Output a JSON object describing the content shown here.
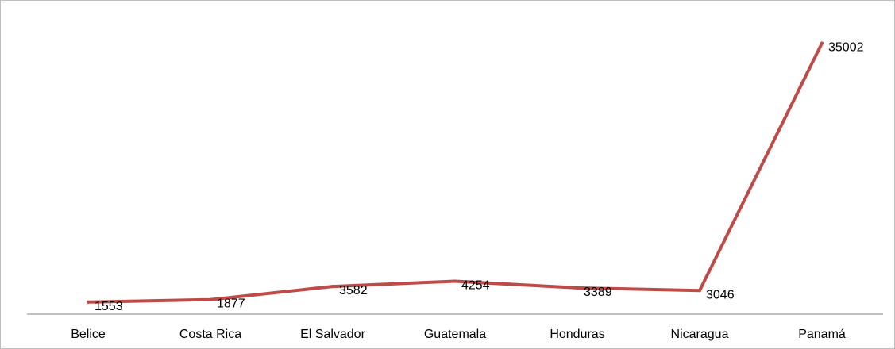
{
  "chart_data": {
    "type": "line",
    "categories": [
      "Belice",
      "Costa Rica",
      "El Salvador",
      "Guatemala",
      "Honduras",
      "Nicaragua",
      "Panamá"
    ],
    "series": [
      {
        "values": [
          1553,
          1877,
          3582,
          4254,
          3389,
          3046,
          35002
        ],
        "color": "#be4b48"
      }
    ],
    "data_labels": [
      "1553",
      "1877",
      "3582",
      "4254",
      "3389",
      "3046",
      "35002"
    ],
    "ylim": [
      0,
      37000
    ],
    "grid": false,
    "legend": "none",
    "axis_color": "#868686"
  }
}
